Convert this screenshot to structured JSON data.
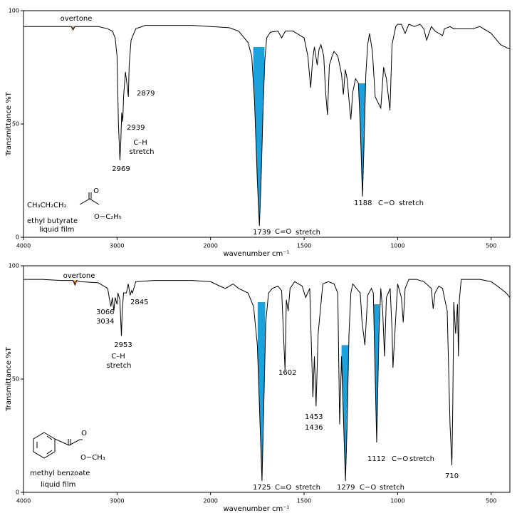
{
  "chart_data": [
    {
      "type": "line",
      "xscale": "piecewise",
      "xlabel": "wavenumber cm⁻¹",
      "ylabel": "Transmittance %T",
      "xlim": [
        4000,
        400
      ],
      "xticks": [
        4000,
        3000,
        2000,
        1500,
        1000,
        500
      ],
      "ylim": [
        0,
        100
      ],
      "yticks": [
        0,
        50,
        100
      ],
      "grid": false,
      "color": "#000000",
      "x": [
        4000,
        3800,
        3600,
        3490,
        3470,
        3450,
        3400,
        3200,
        3100,
        3050,
        3020,
        3000,
        2985,
        2975,
        2969,
        2960,
        2950,
        2939,
        2930,
        2910,
        2895,
        2879,
        2870,
        2850,
        2800,
        2700,
        2500,
        2200,
        2000,
        1900,
        1850,
        1800,
        1780,
        1765,
        1750,
        1739,
        1730,
        1720,
        1710,
        1700,
        1680,
        1640,
        1620,
        1600,
        1560,
        1500,
        1480,
        1465,
        1455,
        1445,
        1430,
        1420,
        1410,
        1395,
        1385,
        1375,
        1365,
        1350,
        1340,
        1320,
        1300,
        1290,
        1280,
        1270,
        1255,
        1250,
        1240,
        1225,
        1210,
        1200,
        1188,
        1180,
        1170,
        1160,
        1150,
        1135,
        1120,
        1090,
        1075,
        1060,
        1041,
        1030,
        1010,
        1000,
        980,
        960,
        940,
        910,
        880,
        860,
        845,
        820,
        800,
        760,
        750,
        720,
        700,
        600,
        560,
        500,
        450,
        400
      ],
      "values": [
        93,
        93,
        93,
        93,
        91.5,
        93,
        93,
        93,
        92,
        91,
        88,
        80,
        50,
        40,
        34,
        42,
        55,
        51,
        62,
        73,
        68,
        62,
        76,
        87,
        92,
        93.5,
        93.5,
        93.5,
        93,
        92.5,
        91,
        86,
        80,
        60,
        25,
        5,
        25,
        55,
        78,
        88,
        90.5,
        91,
        88,
        91,
        91,
        88,
        80,
        66,
        78,
        84,
        76,
        83,
        85,
        80,
        64,
        54,
        76,
        80,
        82,
        80,
        72,
        63,
        74,
        70,
        56,
        52,
        64,
        70,
        68,
        50,
        18,
        40,
        72,
        85,
        90,
        82,
        62,
        57,
        75,
        70,
        56,
        85,
        93,
        94,
        94,
        90,
        94,
        93,
        94,
        92,
        87,
        93,
        91,
        89,
        92,
        93,
        92,
        92,
        93,
        90,
        85,
        83
      ],
      "highlights": [
        {
          "from": 3490,
          "to": 3445,
          "top": 93,
          "color": "#e07b00"
        },
        {
          "from": 1772,
          "to": 1712,
          "top": 84,
          "color": "#1ba1dc"
        },
        {
          "from": 1208,
          "to": 1168,
          "top": 68,
          "color": "#1ba1dc"
        }
      ],
      "annotations": [
        {
          "text": "overtone",
          "color": "#e07b00"
        },
        {
          "text": "2879",
          "color": "#000000"
        },
        {
          "text": "2939",
          "color": "#000000"
        },
        {
          "text": "C–H",
          "color": "#202090"
        },
        {
          "text": "stretch",
          "color": "#202090"
        },
        {
          "text": "2969",
          "color": "#000000"
        },
        {
          "text": "1188",
          "color": "#000000"
        },
        {
          "text": "C−O",
          "color": "#202090"
        },
        {
          "text": "stretch",
          "color": "#202090"
        },
        {
          "text": "1739",
          "color": "#000000"
        },
        {
          "text": "C=O",
          "color": "#202090"
        },
        {
          "text": "stretch",
          "color": "#202090"
        }
      ],
      "molecule": [
        "CH₃CH₂CH₂",
        "O",
        "O−C₂H₅",
        "ethyl butyrate",
        "liquid film"
      ]
    },
    {
      "type": "line",
      "xscale": "piecewise",
      "xlabel": "wavenumber cm⁻¹",
      "ylabel": "Transmittance %T",
      "xlim": [
        4000,
        400
      ],
      "xticks": [
        4000,
        3000,
        2000,
        1500,
        1000,
        500
      ],
      "ylim": [
        0,
        100
      ],
      "yticks": [
        0,
        50,
        100
      ],
      "grid": false,
      "color": "#000000",
      "x": [
        4000,
        3800,
        3600,
        3470,
        3450,
        3430,
        3400,
        3200,
        3100,
        3080,
        3066,
        3050,
        3034,
        3020,
        3000,
        2990,
        2970,
        2953,
        2945,
        2930,
        2900,
        2880,
        2860,
        2845,
        2835,
        2800,
        2600,
        2400,
        2200,
        2000,
        1950,
        1920,
        1880,
        1850,
        1800,
        1770,
        1750,
        1725,
        1715,
        1705,
        1690,
        1670,
        1640,
        1620,
        1602,
        1595,
        1585,
        1575,
        1550,
        1510,
        1492,
        1470,
        1453,
        1445,
        1436,
        1425,
        1400,
        1370,
        1340,
        1320,
        1310,
        1300,
        1279,
        1270,
        1260,
        1250,
        1240,
        1200,
        1190,
        1175,
        1160,
        1140,
        1130,
        1112,
        1100,
        1090,
        1080,
        1070,
        1060,
        1040,
        1030,
        1025,
        1015,
        1000,
        980,
        970,
        960,
        940,
        900,
        860,
        820,
        810,
        800,
        780,
        760,
        735,
        720,
        710,
        705,
        700,
        690,
        680,
        675,
        670,
        660,
        620,
        560,
        500,
        450,
        420,
        400
      ],
      "values": [
        94,
        94,
        93.5,
        93.5,
        91.5,
        93.5,
        93,
        92.5,
        90,
        85,
        82,
        86,
        80,
        86,
        83,
        88,
        85,
        69,
        80,
        88,
        88,
        92,
        87,
        89,
        88,
        93,
        93.5,
        93.5,
        93.5,
        93,
        91,
        90,
        92,
        90,
        88,
        82,
        65,
        5,
        40,
        75,
        88,
        90,
        91,
        89,
        54,
        85,
        80,
        90,
        93,
        91,
        86,
        90,
        42,
        60,
        38,
        70,
        92,
        93,
        92,
        88,
        30,
        60,
        5,
        30,
        70,
        88,
        92,
        88,
        75,
        65,
        87,
        90,
        88,
        22,
        70,
        90,
        80,
        60,
        86,
        90,
        72,
        55,
        70,
        92,
        86,
        75,
        90,
        94,
        94,
        93,
        90,
        81,
        88,
        91,
        90,
        80,
        30,
        12,
        40,
        84,
        70,
        83,
        60,
        85,
        94,
        94,
        94,
        93,
        90,
        88,
        86
      ],
      "highlights": [
        {
          "from": 3470,
          "to": 3430,
          "top": 93.5,
          "color": "#e07b00"
        },
        {
          "from": 1748,
          "to": 1708,
          "top": 84,
          "color": "#1ba1dc"
        },
        {
          "from": 1300,
          "to": 1258,
          "top": 65,
          "color": "#1ba1dc"
        },
        {
          "from": 1128,
          "to": 1098,
          "top": 83,
          "color": "#1ba1dc"
        }
      ],
      "annotations": [
        {
          "text": "overtone",
          "color": "#e07b00"
        },
        {
          "text": "2845",
          "color": "#000000"
        },
        {
          "text": "3066",
          "color": "#000000"
        },
        {
          "text": "3034",
          "color": "#000000"
        },
        {
          "text": "2953",
          "color": "#000000"
        },
        {
          "text": "C–H",
          "color": "#202090"
        },
        {
          "text": "stretch",
          "color": "#202090"
        },
        {
          "text": "1602",
          "color": "#000000"
        },
        {
          "text": "1453",
          "color": "#000000"
        },
        {
          "text": "1436",
          "color": "#000000"
        },
        {
          "text": "1112",
          "color": "#000000"
        },
        {
          "text": "C−O",
          "color": "#202090"
        },
        {
          "text": "stretch",
          "color": "#202090"
        },
        {
          "text": "710",
          "color": "#000000"
        },
        {
          "text": "1725",
          "color": "#000000"
        },
        {
          "text": "C=O",
          "color": "#202090"
        },
        {
          "text": "stretch",
          "color": "#202090"
        },
        {
          "text": "1279",
          "color": "#000000"
        },
        {
          "text": "C−O",
          "color": "#202090"
        },
        {
          "text": "stretch",
          "color": "#202090"
        }
      ],
      "molecule": [
        "O",
        "O−CH₃",
        "methyl benzoate",
        "liquid film"
      ]
    }
  ]
}
